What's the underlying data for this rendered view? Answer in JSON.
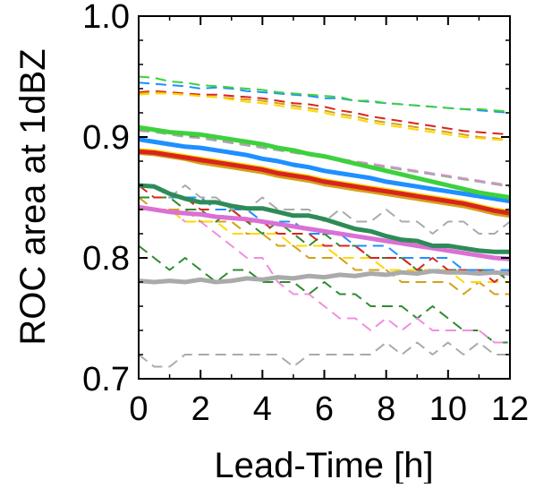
{
  "chart_data": {
    "type": "line",
    "xlabel": "Lead-Time [h]",
    "ylabel": "ROC area at 1dBZ",
    "xlim": [
      0,
      12
    ],
    "ylim": [
      0.7,
      1.0
    ],
    "xticks": [
      0,
      2,
      4,
      6,
      8,
      10,
      12
    ],
    "xtick_labels": [
      "0",
      "2",
      "4",
      "6",
      "8",
      "10",
      "12"
    ],
    "yticks": [
      0.7,
      0.8,
      0.9,
      1.0
    ],
    "ytick_labels": [
      "0.7",
      "0.8",
      "0.9",
      "1.0"
    ],
    "grid": false,
    "x": [
      0,
      0.5,
      1,
      1.5,
      2,
      2.5,
      3,
      3.5,
      4,
      4.5,
      5,
      5.5,
      6,
      6.5,
      7,
      7.5,
      8,
      8.5,
      9,
      9.5,
      10,
      10.5,
      11,
      11.5,
      12
    ],
    "series": [
      {
        "style": "dashed",
        "color": "#2e8b2e",
        "values": [
          0.81,
          0.8,
          0.79,
          0.8,
          0.79,
          0.78,
          0.79,
          0.79,
          0.78,
          0.78,
          0.78,
          0.77,
          0.78,
          0.77,
          0.77,
          0.76,
          0.76,
          0.76,
          0.75,
          0.76,
          0.75,
          0.74,
          0.74,
          0.73,
          0.73
        ]
      },
      {
        "style": "dashed",
        "color": "#f08ee0",
        "values": [
          0.85,
          0.84,
          0.84,
          0.83,
          0.83,
          0.82,
          0.81,
          0.8,
          0.8,
          0.78,
          0.77,
          0.77,
          0.76,
          0.75,
          0.75,
          0.74,
          0.75,
          0.74,
          0.75,
          0.74,
          0.74,
          0.74,
          0.74,
          0.73,
          0.73
        ]
      },
      {
        "style": "dashed",
        "color": "#aaaaaa",
        "values": [
          0.72,
          0.71,
          0.71,
          0.72,
          0.72,
          0.72,
          0.72,
          0.72,
          0.72,
          0.72,
          0.71,
          0.72,
          0.72,
          0.72,
          0.72,
          0.72,
          0.73,
          0.72,
          0.73,
          0.72,
          0.73,
          0.72,
          0.73,
          0.72,
          0.72
        ]
      },
      {
        "style": "dashed",
        "color": "#d4a017",
        "values": [
          0.85,
          0.84,
          0.84,
          0.84,
          0.83,
          0.83,
          0.83,
          0.82,
          0.82,
          0.81,
          0.81,
          0.8,
          0.8,
          0.8,
          0.79,
          0.79,
          0.79,
          0.78,
          0.78,
          0.78,
          0.78,
          0.77,
          0.78,
          0.77,
          0.77
        ]
      },
      {
        "style": "dashed",
        "color": "#ffd700",
        "values": [
          0.84,
          0.84,
          0.84,
          0.83,
          0.83,
          0.83,
          0.82,
          0.82,
          0.82,
          0.82,
          0.81,
          0.81,
          0.81,
          0.8,
          0.8,
          0.8,
          0.79,
          0.79,
          0.79,
          0.79,
          0.79,
          0.78,
          0.78,
          0.78,
          0.78
        ]
      },
      {
        "style": "dashed",
        "color": "#2e8b2e",
        "values": [
          0.85,
          0.85,
          0.85,
          0.84,
          0.84,
          0.83,
          0.84,
          0.83,
          0.82,
          0.83,
          0.82,
          0.81,
          0.82,
          0.81,
          0.81,
          0.8,
          0.8,
          0.8,
          0.79,
          0.79,
          0.79,
          0.79,
          0.79,
          0.79,
          0.78
        ]
      },
      {
        "style": "dashed",
        "color": "#d9241e",
        "values": [
          0.86,
          0.85,
          0.85,
          0.85,
          0.84,
          0.84,
          0.84,
          0.83,
          0.83,
          0.82,
          0.82,
          0.82,
          0.81,
          0.81,
          0.81,
          0.8,
          0.8,
          0.8,
          0.79,
          0.8,
          0.79,
          0.79,
          0.79,
          0.78,
          0.79
        ]
      },
      {
        "style": "dashed",
        "color": "#1e90ff",
        "values": [
          0.86,
          0.86,
          0.85,
          0.85,
          0.85,
          0.84,
          0.84,
          0.84,
          0.83,
          0.83,
          0.83,
          0.82,
          0.82,
          0.82,
          0.81,
          0.81,
          0.81,
          0.8,
          0.8,
          0.8,
          0.8,
          0.79,
          0.79,
          0.79,
          0.79
        ]
      },
      {
        "style": "dashed",
        "color": "#aaaaaa",
        "values": [
          0.86,
          0.86,
          0.85,
          0.86,
          0.85,
          0.85,
          0.84,
          0.84,
          0.85,
          0.84,
          0.84,
          0.84,
          0.83,
          0.84,
          0.83,
          0.83,
          0.84,
          0.83,
          0.83,
          0.82,
          0.83,
          0.83,
          0.82,
          0.82,
          0.83
        ]
      },
      {
        "style": "dashed",
        "color": "#1e90ff",
        "values": [
          0.945,
          0.944,
          0.943,
          0.942,
          0.94,
          0.941,
          0.94,
          0.938,
          0.937,
          0.936,
          0.935,
          0.934,
          0.932,
          0.932,
          0.93,
          0.929,
          0.928,
          0.927,
          0.926,
          0.925,
          0.924,
          0.923,
          0.922,
          0.921,
          0.92
        ]
      },
      {
        "style": "dashed",
        "color": "#3dd13d",
        "values": [
          0.95,
          0.949,
          0.946,
          0.945,
          0.943,
          0.942,
          0.941,
          0.94,
          0.939,
          0.937,
          0.936,
          0.935,
          0.934,
          0.933,
          0.93,
          0.93,
          0.928,
          0.927,
          0.926,
          0.925,
          0.924,
          0.923,
          0.923,
          0.922,
          0.921
        ]
      },
      {
        "style": "dashed",
        "color": "#d9241e",
        "values": [
          0.937,
          0.938,
          0.937,
          0.936,
          0.935,
          0.935,
          0.934,
          0.933,
          0.932,
          0.93,
          0.928,
          0.927,
          0.925,
          0.922,
          0.92,
          0.917,
          0.915,
          0.913,
          0.911,
          0.909,
          0.907,
          0.905,
          0.904,
          0.903,
          0.902
        ]
      },
      {
        "style": "dashed",
        "color": "#d4a017",
        "values": [
          0.936,
          0.937,
          0.936,
          0.935,
          0.934,
          0.933,
          0.932,
          0.931,
          0.93,
          0.928,
          0.926,
          0.924,
          0.922,
          0.919,
          0.917,
          0.914,
          0.912,
          0.91,
          0.908,
          0.906,
          0.904,
          0.902,
          0.9,
          0.899,
          0.897
        ]
      },
      {
        "style": "dashed",
        "color": "#ffd700",
        "values": [
          0.935,
          0.936,
          0.936,
          0.935,
          0.934,
          0.933,
          0.931,
          0.929,
          0.928,
          0.926,
          0.924,
          0.922,
          0.92,
          0.917,
          0.915,
          0.912,
          0.91,
          0.908,
          0.906,
          0.904,
          0.902,
          0.9,
          0.899,
          0.898,
          0.897
        ]
      },
      {
        "style": "dashed",
        "color": "#f08ee0",
        "values": [
          0.908,
          0.906,
          0.904,
          0.902,
          0.9,
          0.898,
          0.896,
          0.894,
          0.892,
          0.89,
          0.888,
          0.886,
          0.884,
          0.882,
          0.88,
          0.878,
          0.876,
          0.874,
          0.872,
          0.87,
          0.868,
          0.866,
          0.864,
          0.862,
          0.86
        ]
      },
      {
        "style": "dashed",
        "color": "#2e8b2e",
        "values": [
          0.906,
          0.905,
          0.903,
          0.901,
          0.899,
          0.897,
          0.895,
          0.893,
          0.891,
          0.889,
          0.887,
          0.885,
          0.883,
          0.881,
          0.879,
          0.877,
          0.875,
          0.873,
          0.871,
          0.869,
          0.867,
          0.865,
          0.863,
          0.861,
          0.859
        ]
      },
      {
        "style": "dashed",
        "color": "#aaaaaa",
        "values": [
          0.905,
          0.904,
          0.902,
          0.9,
          0.899,
          0.897,
          0.895,
          0.893,
          0.891,
          0.889,
          0.887,
          0.885,
          0.883,
          0.881,
          0.879,
          0.877,
          0.875,
          0.873,
          0.871,
          0.869,
          0.867,
          0.865,
          0.863,
          0.861,
          0.859
        ]
      },
      {
        "style": "solid",
        "color": "#aaaaaa",
        "values": [
          0.781,
          0.78,
          0.781,
          0.78,
          0.782,
          0.78,
          0.781,
          0.783,
          0.782,
          0.784,
          0.783,
          0.785,
          0.784,
          0.786,
          0.785,
          0.787,
          0.786,
          0.788,
          0.787,
          0.789,
          0.788,
          0.788,
          0.787,
          0.788,
          0.787
        ]
      },
      {
        "style": "solid",
        "color": "#da70d6",
        "values": [
          0.842,
          0.84,
          0.838,
          0.837,
          0.836,
          0.834,
          0.833,
          0.832,
          0.83,
          0.828,
          0.826,
          0.824,
          0.822,
          0.82,
          0.818,
          0.816,
          0.814,
          0.812,
          0.81,
          0.808,
          0.806,
          0.804,
          0.802,
          0.8,
          0.799
        ]
      },
      {
        "style": "solid",
        "color": "#2e8b57",
        "values": [
          0.86,
          0.859,
          0.853,
          0.849,
          0.846,
          0.846,
          0.843,
          0.841,
          0.841,
          0.838,
          0.835,
          0.835,
          0.832,
          0.828,
          0.824,
          0.822,
          0.818,
          0.815,
          0.814,
          0.81,
          0.81,
          0.808,
          0.806,
          0.805,
          0.805
        ]
      },
      {
        "style": "solid",
        "color": "#d4a017",
        "values": [
          0.887,
          0.886,
          0.884,
          0.882,
          0.879,
          0.877,
          0.875,
          0.873,
          0.871,
          0.868,
          0.866,
          0.864,
          0.861,
          0.859,
          0.857,
          0.855,
          0.853,
          0.851,
          0.849,
          0.847,
          0.845,
          0.843,
          0.84,
          0.837,
          0.835
        ]
      },
      {
        "style": "solid",
        "color": "#ffd700",
        "values": [
          0.889,
          0.888,
          0.886,
          0.884,
          0.882,
          0.88,
          0.878,
          0.876,
          0.874,
          0.871,
          0.869,
          0.867,
          0.864,
          0.862,
          0.86,
          0.858,
          0.856,
          0.854,
          0.852,
          0.85,
          0.848,
          0.846,
          0.843,
          0.84,
          0.838
        ]
      },
      {
        "style": "solid",
        "color": "#d9241e",
        "values": [
          0.888,
          0.887,
          0.885,
          0.883,
          0.881,
          0.879,
          0.877,
          0.875,
          0.873,
          0.87,
          0.868,
          0.866,
          0.863,
          0.861,
          0.859,
          0.857,
          0.855,
          0.853,
          0.851,
          0.849,
          0.847,
          0.845,
          0.842,
          0.839,
          0.837
        ]
      },
      {
        "style": "solid",
        "color": "#1e90ff",
        "values": [
          0.898,
          0.896,
          0.894,
          0.892,
          0.891,
          0.889,
          0.887,
          0.885,
          0.882,
          0.88,
          0.877,
          0.875,
          0.872,
          0.87,
          0.868,
          0.866,
          0.863,
          0.861,
          0.859,
          0.857,
          0.855,
          0.853,
          0.851,
          0.849,
          0.847
        ]
      },
      {
        "style": "solid",
        "color": "#3dd13d",
        "values": [
          0.908,
          0.906,
          0.904,
          0.903,
          0.902,
          0.9,
          0.898,
          0.896,
          0.894,
          0.891,
          0.889,
          0.886,
          0.884,
          0.881,
          0.878,
          0.875,
          0.872,
          0.869,
          0.866,
          0.863,
          0.86,
          0.857,
          0.854,
          0.852,
          0.85
        ]
      }
    ]
  }
}
